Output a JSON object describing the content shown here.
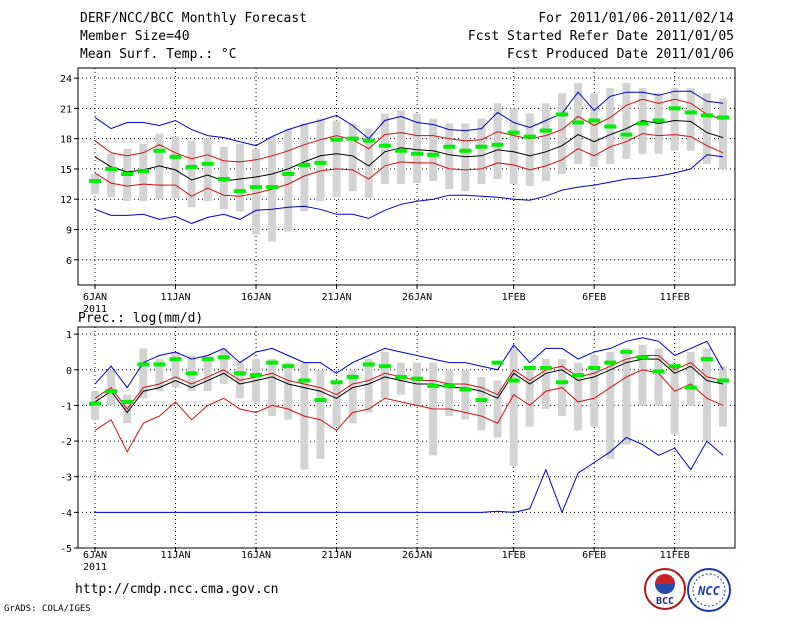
{
  "header": {
    "title": "DERF/NCC/BCC Monthly Forecast",
    "member_size": "Member Size=40",
    "variable": "Mean Surf. Temp.: °C",
    "period": "For 2011/01/06-2011/02/14",
    "started": "Fcst Started Refer Date 2011/01/05",
    "produced": "Fcst Produced Date 2011/01/06"
  },
  "footer": {
    "url": "http://cmdp.ncc.cma.gov.cn",
    "credit": "GrADS: COLA/IGES",
    "logo_bcc": "BCC",
    "logo_ncc": "NCC"
  },
  "colors": {
    "ensemble_mean": "#000000",
    "spread": "#d01010",
    "extremes": "#0000cc",
    "observed": "#00ee00",
    "bars": "#d3d3d3"
  },
  "chart_data": [
    {
      "type": "line",
      "title": "Mean Surf. Temp.: °C",
      "x_tick_labels": [
        "6JAN",
        "11JAN",
        "16JAN",
        "21JAN",
        "26JAN",
        "1FEB",
        "6FEB",
        "11FEB"
      ],
      "x_tick_indices": [
        0,
        5,
        10,
        15,
        20,
        26,
        31,
        36
      ],
      "x_sublabel": "2011",
      "ylim": [
        3.5,
        25
      ],
      "y_ticks": [
        6,
        9,
        12,
        15,
        18,
        21,
        24
      ],
      "days": 40,
      "series": [
        {
          "name": "mean",
          "values": [
            16.2,
            15.2,
            14.7,
            14.9,
            15.3,
            14.9,
            13.9,
            14.4,
            13.8,
            14.0,
            14.2,
            14.5,
            15.0,
            15.7,
            16.3,
            16.5,
            16.3,
            15.3,
            16.7,
            17.1,
            16.9,
            16.8,
            16.4,
            16.2,
            16.3,
            16.9,
            16.7,
            16.3,
            16.7,
            17.3,
            18.4,
            17.7,
            18.4,
            19.0,
            19.8,
            19.5,
            19.8,
            19.7,
            18.6,
            18.1
          ]
        },
        {
          "name": "mean_plus_sd",
          "values": [
            17.8,
            16.6,
            16.3,
            16.6,
            17.4,
            16.6,
            16.0,
            16.4,
            15.8,
            15.7,
            15.9,
            16.3,
            16.8,
            17.4,
            17.9,
            18.3,
            17.9,
            17.0,
            18.4,
            18.6,
            18.3,
            18.3,
            18.0,
            17.8,
            17.9,
            18.7,
            18.3,
            18.0,
            18.3,
            18.9,
            20.2,
            19.3,
            20.1,
            21.3,
            21.9,
            21.5,
            21.9,
            21.5,
            20.4,
            19.9
          ]
        },
        {
          "name": "mean_minus_sd",
          "values": [
            14.6,
            13.6,
            13.3,
            13.5,
            13.4,
            13.4,
            12.3,
            13.1,
            12.4,
            12.3,
            12.6,
            13.0,
            13.5,
            14.3,
            14.8,
            15.0,
            14.9,
            14.0,
            15.3,
            15.7,
            15.6,
            15.6,
            15.0,
            14.9,
            15.0,
            15.6,
            15.4,
            14.9,
            15.3,
            15.9,
            17.0,
            16.3,
            17.2,
            17.7,
            18.5,
            18.3,
            18.4,
            18.2,
            17.3,
            16.6
          ]
        },
        {
          "name": "max",
          "values": [
            20.1,
            19.0,
            19.6,
            19.6,
            19.3,
            19.8,
            18.9,
            18.3,
            18.1,
            17.7,
            17.3,
            18.2,
            18.9,
            19.4,
            19.8,
            20.3,
            19.3,
            18.0,
            19.8,
            20.2,
            19.6,
            19.4,
            18.9,
            18.8,
            19.0,
            20.6,
            19.6,
            19.1,
            19.8,
            20.5,
            22.6,
            20.8,
            22.2,
            22.6,
            22.6,
            22.3,
            22.7,
            22.7,
            21.7,
            21.5
          ]
        },
        {
          "name": "min",
          "values": [
            11.0,
            10.4,
            10.4,
            10.5,
            10.0,
            10.3,
            9.6,
            10.2,
            10.5,
            10.0,
            10.9,
            11.0,
            11.2,
            11.3,
            11.0,
            10.5,
            10.5,
            10.1,
            10.9,
            11.5,
            11.8,
            12.0,
            12.4,
            12.4,
            12.3,
            12.2,
            12.0,
            11.9,
            12.3,
            12.9,
            13.2,
            13.4,
            13.7,
            14.0,
            14.1,
            14.3,
            14.6,
            15.0,
            16.4,
            16.2
          ]
        },
        {
          "name": "obs_range_low",
          "values": [
            12.5,
            12.2,
            11.8,
            11.8,
            12.0,
            12.1,
            11.2,
            11.8,
            11.0,
            10.8,
            8.5,
            7.8,
            8.8,
            10.8,
            11.8,
            12.2,
            12.8,
            12.1,
            13.5,
            13.5,
            13.6,
            13.8,
            13.0,
            12.8,
            13.5,
            14.0,
            13.5,
            13.3,
            13.8,
            14.5,
            15.5,
            15.2,
            15.5,
            16.0,
            16.5,
            16.5,
            16.8,
            16.8,
            15.5,
            15.0
          ]
        },
        {
          "name": "obs_range_high",
          "values": [
            14.5,
            16.5,
            17.0,
            17.5,
            18.5,
            18.2,
            17.8,
            18.0,
            17.2,
            17.5,
            17.0,
            18.2,
            19.0,
            19.5,
            20.0,
            19.8,
            19.5,
            19.0,
            20.5,
            20.8,
            20.5,
            20.0,
            19.5,
            19.5,
            20.0,
            21.5,
            21.0,
            20.5,
            21.5,
            22.5,
            23.5,
            22.5,
            23.0,
            23.5,
            23.0,
            22.5,
            23.0,
            23.0,
            22.5,
            22.0
          ]
        },
        {
          "name": "observed",
          "values": [
            13.8,
            15.0,
            14.5,
            14.8,
            16.8,
            16.2,
            15.2,
            15.5,
            14.0,
            12.8,
            13.2,
            13.2,
            14.5,
            15.4,
            15.6,
            17.9,
            18.0,
            17.8,
            17.3,
            16.8,
            16.5,
            16.4,
            17.2,
            16.8,
            17.2,
            17.4,
            18.6,
            18.2,
            18.8,
            20.4,
            19.6,
            19.8,
            19.2,
            18.4,
            19.5,
            19.8,
            21.0,
            20.6,
            20.3,
            20.1
          ]
        }
      ]
    },
    {
      "type": "line",
      "title": "Prec.: log(mm/d)",
      "x_tick_labels": [
        "6JAN",
        "11JAN",
        "16JAN",
        "21JAN",
        "26JAN",
        "1FEB",
        "6FEB",
        "11FEB"
      ],
      "x_tick_indices": [
        0,
        5,
        10,
        15,
        20,
        26,
        31,
        36
      ],
      "x_sublabel": "2011",
      "ylim": [
        -5,
        1.2
      ],
      "y_ticks": [
        -5,
        -4,
        -3,
        -2,
        -1,
        0,
        1
      ],
      "days": 40,
      "series": [
        {
          "name": "mean",
          "values": [
            -0.9,
            -0.6,
            -1.2,
            -0.6,
            -0.5,
            -0.3,
            -0.5,
            -0.3,
            -0.1,
            -0.4,
            -0.3,
            -0.2,
            -0.4,
            -0.5,
            -0.6,
            -0.8,
            -0.5,
            -0.4,
            -0.2,
            -0.3,
            -0.4,
            -0.4,
            -0.5,
            -0.5,
            -0.6,
            -0.8,
            -0.1,
            -0.4,
            -0.1,
            0.0,
            -0.3,
            -0.2,
            0.0,
            0.2,
            0.3,
            0.3,
            -0.1,
            0.1,
            -0.3,
            -0.4
          ]
        },
        {
          "name": "mean_plus_sd",
          "values": [
            -0.8,
            -0.5,
            -1.1,
            -0.5,
            -0.4,
            -0.2,
            -0.4,
            -0.2,
            0.0,
            -0.3,
            -0.2,
            -0.1,
            -0.3,
            -0.4,
            -0.5,
            -0.7,
            -0.4,
            -0.3,
            -0.1,
            -0.2,
            -0.3,
            -0.3,
            -0.4,
            -0.4,
            -0.5,
            -0.7,
            0.0,
            -0.3,
            0.0,
            0.1,
            -0.2,
            -0.1,
            0.1,
            0.3,
            0.4,
            0.4,
            0.0,
            0.2,
            -0.2,
            -0.3
          ]
        },
        {
          "name": "mean_minus_sd",
          "values": [
            -1.7,
            -1.4,
            -2.3,
            -1.5,
            -1.3,
            -0.9,
            -1.4,
            -1.0,
            -0.8,
            -1.1,
            -1.2,
            -1.0,
            -1.1,
            -1.3,
            -1.4,
            -1.7,
            -1.2,
            -1.1,
            -0.8,
            -0.9,
            -1.0,
            -1.1,
            -1.1,
            -1.2,
            -1.3,
            -1.5,
            -0.7,
            -1.0,
            -0.6,
            -0.5,
            -0.9,
            -0.8,
            -0.5,
            -0.2,
            0.0,
            -0.1,
            -0.6,
            -0.4,
            -0.8,
            -1.0
          ]
        },
        {
          "name": "max",
          "values": [
            -0.4,
            0.1,
            -0.5,
            0.2,
            0.4,
            0.5,
            0.3,
            0.4,
            0.6,
            0.2,
            0.5,
            0.6,
            0.4,
            0.2,
            0.2,
            -0.1,
            0.2,
            0.4,
            0.6,
            0.5,
            0.4,
            0.3,
            0.2,
            0.2,
            0.1,
            0.0,
            0.7,
            0.2,
            0.6,
            0.6,
            0.3,
            0.5,
            0.6,
            0.8,
            0.9,
            0.8,
            0.4,
            0.6,
            0.8,
            0.0
          ]
        },
        {
          "name": "min",
          "values": [
            -4.0,
            -4.0,
            -4.0,
            -4.0,
            -4.0,
            -4.0,
            -4.0,
            -4.0,
            -4.0,
            -4.0,
            -4.0,
            -4.0,
            -4.0,
            -4.0,
            -4.0,
            -4.0,
            -4.0,
            -4.0,
            -4.0,
            -4.0,
            -4.0,
            -4.0,
            -4.0,
            -4.0,
            -4.0,
            -3.97,
            -4.0,
            -3.9,
            -2.8,
            -4.0,
            -2.9,
            -2.6,
            -2.3,
            -1.9,
            -2.1,
            -2.4,
            -2.2,
            -2.8,
            -2.0,
            -2.4
          ]
        },
        {
          "name": "obs_range_low",
          "values": [
            -1.4,
            -1.0,
            -1.5,
            -0.8,
            -0.6,
            -0.5,
            -0.6,
            -0.6,
            -0.4,
            -0.8,
            -0.9,
            -1.3,
            -1.4,
            -2.8,
            -2.5,
            -1.6,
            -1.5,
            -1.2,
            -0.8,
            -0.7,
            -1.0,
            -2.4,
            -1.3,
            -1.4,
            -1.7,
            -1.9,
            -2.7,
            -1.6,
            -1.1,
            -1.3,
            -1.7,
            -1.6,
            -2.5,
            -2.1,
            -1.0,
            -1.0,
            -1.8,
            -1.0,
            -2.0,
            -1.6
          ]
        },
        {
          "name": "obs_range_high",
          "values": [
            -0.6,
            0.0,
            -0.7,
            0.6,
            0.3,
            0.5,
            0.4,
            0.4,
            0.6,
            0.2,
            0.3,
            0.3,
            0.2,
            0.2,
            0.0,
            -0.4,
            0.0,
            0.3,
            0.5,
            0.2,
            0.2,
            0.2,
            0.0,
            0.0,
            -0.2,
            -0.3,
            0.6,
            0.0,
            0.3,
            0.3,
            0.2,
            0.4,
            0.5,
            0.6,
            0.7,
            0.6,
            0.1,
            0.5,
            0.6,
            0.1
          ]
        },
        {
          "name": "observed",
          "values": [
            -0.95,
            -0.6,
            -0.9,
            0.15,
            0.15,
            0.3,
            -0.1,
            0.3,
            0.35,
            -0.1,
            -0.15,
            0.2,
            0.1,
            -0.3,
            -0.85,
            -0.35,
            -0.2,
            0.15,
            0.1,
            -0.2,
            -0.25,
            -0.45,
            -0.45,
            -0.55,
            -0.85,
            0.2,
            -0.3,
            0.05,
            0.05,
            -0.35,
            -0.15,
            0.05,
            0.2,
            0.5,
            0.35,
            -0.05,
            0.1,
            -0.5,
            0.3,
            -0.3
          ]
        }
      ]
    }
  ]
}
